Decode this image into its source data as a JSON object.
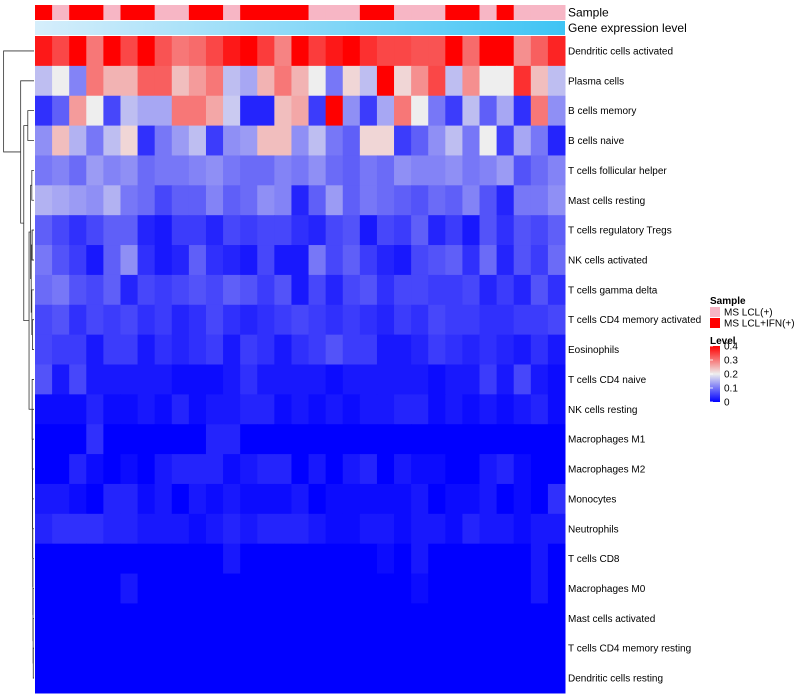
{
  "chart_data": {
    "type": "heatmap",
    "title": "",
    "annotation_labels": [
      "Sample",
      "Gene expression level"
    ],
    "rows": [
      "Dendritic cells activated",
      "Plasma cells",
      "B cells memory",
      "B cells naive",
      "T cells follicular helper",
      "Mast cells resting",
      "T cells regulatory  Tregs",
      "NK cells activated",
      "T cells gamma delta",
      "T cells CD4 memory activated",
      "Eosinophils",
      "T cells CD4 naive",
      "NK cells resting",
      "Macrophages M1",
      "Macrophages M2",
      "Monocytes",
      "Neutrophils",
      "T cells CD8",
      "Macrophages M0",
      "Mast cells activated",
      "T cells CD4 memory resting",
      "Dendritic cells resting"
    ],
    "sample_groups": [
      1,
      0,
      1,
      1,
      0,
      1,
      1,
      0,
      0,
      1,
      1,
      0,
      1,
      1,
      1,
      1,
      0,
      0,
      0,
      1,
      1,
      0,
      0,
      0,
      1,
      1,
      0,
      1,
      0,
      0,
      0
    ],
    "values": [
      [
        0.38,
        0.34,
        0.4,
        0.3,
        0.4,
        0.34,
        0.4,
        0.33,
        0.3,
        0.31,
        0.34,
        0.38,
        0.4,
        0.35,
        0.29,
        0.4,
        0.35,
        0.38,
        0.4,
        0.36,
        0.34,
        0.34,
        0.33,
        0.33,
        0.4,
        0.31,
        0.4,
        0.4,
        0.28,
        0.32,
        0.37
      ],
      [
        0.16,
        0.2,
        0.11,
        0.3,
        0.25,
        0.25,
        0.32,
        0.32,
        0.24,
        0.27,
        0.3,
        0.16,
        0.14,
        0.25,
        0.3,
        0.25,
        0.2,
        0.1,
        0.22,
        0.16,
        0.4,
        0.22,
        0.28,
        0.34,
        0.16,
        0.28,
        0.2,
        0.2,
        0.36,
        0.24,
        0.16
      ],
      [
        0.04,
        0.08,
        0.27,
        0.2,
        0.06,
        0.16,
        0.14,
        0.14,
        0.3,
        0.3,
        0.26,
        0.17,
        0.03,
        0.03,
        0.24,
        0.26,
        0.05,
        0.4,
        0.12,
        0.05,
        0.14,
        0.3,
        0.2,
        0.1,
        0.05,
        0.16,
        0.08,
        0.14,
        0.04,
        0.3,
        0.12
      ],
      [
        0.12,
        0.24,
        0.15,
        0.1,
        0.16,
        0.22,
        0.04,
        0.1,
        0.13,
        0.16,
        0.05,
        0.12,
        0.13,
        0.24,
        0.24,
        0.12,
        0.16,
        0.1,
        0.08,
        0.22,
        0.22,
        0.05,
        0.08,
        0.12,
        0.16,
        0.1,
        0.2,
        0.05,
        0.14,
        0.1,
        0.03
      ],
      [
        0.1,
        0.11,
        0.09,
        0.13,
        0.11,
        0.12,
        0.09,
        0.1,
        0.1,
        0.11,
        0.12,
        0.1,
        0.09,
        0.09,
        0.11,
        0.1,
        0.12,
        0.09,
        0.08,
        0.1,
        0.09,
        0.12,
        0.11,
        0.11,
        0.12,
        0.1,
        0.11,
        0.13,
        0.07,
        0.09,
        0.11
      ],
      [
        0.15,
        0.14,
        0.13,
        0.12,
        0.15,
        0.1,
        0.09,
        0.06,
        0.08,
        0.08,
        0.11,
        0.08,
        0.09,
        0.12,
        0.11,
        0.03,
        0.08,
        0.13,
        0.08,
        0.1,
        0.09,
        0.08,
        0.07,
        0.09,
        0.08,
        0.11,
        0.07,
        0.03,
        0.1,
        0.1,
        0.12
      ],
      [
        0.08,
        0.06,
        0.04,
        0.06,
        0.08,
        0.08,
        0.03,
        0.02,
        0.05,
        0.05,
        0.03,
        0.06,
        0.05,
        0.06,
        0.06,
        0.04,
        0.03,
        0.06,
        0.07,
        0.02,
        0.06,
        0.05,
        0.08,
        0.03,
        0.05,
        0.02,
        0.07,
        0.04,
        0.07,
        0.06,
        0.08
      ],
      [
        0.1,
        0.07,
        0.05,
        0.02,
        0.08,
        0.12,
        0.04,
        0.02,
        0.03,
        0.08,
        0.04,
        0.03,
        0.02,
        0.06,
        0.02,
        0.02,
        0.1,
        0.06,
        0.08,
        0.05,
        0.03,
        0.02,
        0.06,
        0.07,
        0.08,
        0.04,
        0.09,
        0.03,
        0.07,
        0.05,
        0.09
      ],
      [
        0.09,
        0.1,
        0.07,
        0.06,
        0.08,
        0.03,
        0.06,
        0.05,
        0.06,
        0.07,
        0.06,
        0.08,
        0.07,
        0.05,
        0.07,
        0.02,
        0.06,
        0.03,
        0.06,
        0.07,
        0.04,
        0.06,
        0.06,
        0.05,
        0.05,
        0.06,
        0.03,
        0.05,
        0.03,
        0.07,
        0.04
      ],
      [
        0.06,
        0.07,
        0.04,
        0.06,
        0.05,
        0.06,
        0.04,
        0.05,
        0.03,
        0.04,
        0.06,
        0.04,
        0.03,
        0.04,
        0.05,
        0.06,
        0.05,
        0.04,
        0.05,
        0.04,
        0.03,
        0.05,
        0.04,
        0.06,
        0.05,
        0.05,
        0.04,
        0.04,
        0.05,
        0.05,
        0.06
      ],
      [
        0.06,
        0.05,
        0.05,
        0.02,
        0.05,
        0.05,
        0.02,
        0.04,
        0.03,
        0.04,
        0.05,
        0.02,
        0.05,
        0.04,
        0.02,
        0.04,
        0.05,
        0.07,
        0.05,
        0.05,
        0.02,
        0.02,
        0.03,
        0.05,
        0.04,
        0.03,
        0.04,
        0.03,
        0.02,
        0.04,
        0.02
      ],
      [
        0.07,
        0.02,
        0.06,
        0.02,
        0.02,
        0.02,
        0.02,
        0.02,
        0.01,
        0.01,
        0.01,
        0.02,
        0.04,
        0.02,
        0.02,
        0.02,
        0.02,
        0.01,
        0.02,
        0.02,
        0.02,
        0.02,
        0.02,
        0.01,
        0.02,
        0.02,
        0.05,
        0.02,
        0.06,
        0.02,
        0.01
      ],
      [
        0.01,
        0.01,
        0.01,
        0.03,
        0.01,
        0.01,
        0.02,
        0.01,
        0.03,
        0.01,
        0.02,
        0.02,
        0.03,
        0.03,
        0.01,
        0.02,
        0.01,
        0.02,
        0.01,
        0.02,
        0.02,
        0.03,
        0.03,
        0.01,
        0.02,
        0.01,
        0.02,
        0.01,
        0.02,
        0.03,
        0.01
      ],
      [
        0.0,
        0.0,
        0.0,
        0.04,
        0.0,
        0.0,
        0.0,
        0.0,
        0.0,
        0.0,
        0.03,
        0.03,
        0.0,
        0.0,
        0.0,
        0.0,
        0.0,
        0.0,
        0.0,
        0.0,
        0.0,
        0.0,
        0.0,
        0.0,
        0.0,
        0.0,
        0.0,
        0.0,
        0.0,
        0.0,
        0.0
      ],
      [
        0.0,
        0.0,
        0.03,
        0.01,
        0.0,
        0.01,
        0.0,
        0.02,
        0.03,
        0.03,
        0.03,
        0.01,
        0.02,
        0.03,
        0.03,
        0.0,
        0.02,
        0.0,
        0.02,
        0.03,
        0.0,
        0.02,
        0.01,
        0.01,
        0.0,
        0.0,
        0.02,
        0.03,
        0.01,
        0.0,
        0.0
      ],
      [
        0.02,
        0.02,
        0.01,
        0.0,
        0.03,
        0.03,
        0.01,
        0.02,
        0.0,
        0.02,
        0.01,
        0.02,
        0.01,
        0.01,
        0.01,
        0.02,
        0.0,
        0.01,
        0.01,
        0.01,
        0.01,
        0.01,
        0.02,
        0.0,
        0.01,
        0.01,
        0.02,
        0.0,
        0.01,
        0.0,
        0.04
      ],
      [
        0.03,
        0.04,
        0.04,
        0.04,
        0.03,
        0.03,
        0.02,
        0.02,
        0.02,
        0.01,
        0.02,
        0.03,
        0.02,
        0.03,
        0.03,
        0.03,
        0.02,
        0.01,
        0.01,
        0.02,
        0.02,
        0.01,
        0.02,
        0.02,
        0.01,
        0.03,
        0.02,
        0.02,
        0.01,
        0.02,
        0.02
      ],
      [
        0.0,
        0.0,
        0.0,
        0.0,
        0.0,
        0.0,
        0.0,
        0.0,
        0.0,
        0.0,
        0.0,
        0.02,
        0.0,
        0.0,
        0.0,
        0.0,
        0.0,
        0.0,
        0.0,
        0.0,
        0.01,
        0.0,
        0.02,
        0.0,
        0.0,
        0.0,
        0.0,
        0.0,
        0.0,
        0.02,
        0.0
      ],
      [
        0.0,
        0.0,
        0.0,
        0.0,
        0.0,
        0.02,
        0.0,
        0.0,
        0.0,
        0.0,
        0.0,
        0.0,
        0.0,
        0.0,
        0.0,
        0.0,
        0.0,
        0.0,
        0.0,
        0.0,
        0.0,
        0.0,
        0.01,
        0.0,
        0.0,
        0.0,
        0.0,
        0.0,
        0.0,
        0.02,
        0.0
      ],
      [
        0.0,
        0.0,
        0.0,
        0.0,
        0.0,
        0.0,
        0.0,
        0.0,
        0.0,
        0.0,
        0.0,
        0.0,
        0.0,
        0.0,
        0.0,
        0.0,
        0.0,
        0.0,
        0.0,
        0.0,
        0.0,
        0.0,
        0.0,
        0.0,
        0.0,
        0.0,
        0.0,
        0.0,
        0.0,
        0.0,
        0.0
      ],
      [
        0.0,
        0.0,
        0.0,
        0.0,
        0.0,
        0.0,
        0.0,
        0.0,
        0.0,
        0.0,
        0.0,
        0.0,
        0.0,
        0.0,
        0.0,
        0.0,
        0.0,
        0.0,
        0.0,
        0.0,
        0.0,
        0.0,
        0.0,
        0.0,
        0.0,
        0.0,
        0.0,
        0.0,
        0.0,
        0.0,
        0.0
      ],
      [
        0.0,
        0.0,
        0.0,
        0.0,
        0.0,
        0.0,
        0.0,
        0.0,
        0.0,
        0.0,
        0.0,
        0.0,
        0.0,
        0.0,
        0.0,
        0.0,
        0.0,
        0.0,
        0.0,
        0.0,
        0.0,
        0.0,
        0.0,
        0.0,
        0.0,
        0.0,
        0.0,
        0.0,
        0.0,
        0.0,
        0.0
      ]
    ],
    "legend": {
      "sample": {
        "title": "Sample",
        "entries": [
          {
            "label": "MS LCL(+)",
            "color": "#f7b6c5"
          },
          {
            "label": "MS LCL+IFN(+)",
            "color": "#ff0000"
          }
        ]
      },
      "level": {
        "title": "Level",
        "min": 0,
        "max": 0.4,
        "ticks": [
          "0.4",
          "0.3",
          "0.2",
          "0.1",
          "0"
        ],
        "tick_values": [
          0.4,
          0.3,
          0.2,
          0.1,
          0
        ],
        "colors": [
          "#0000ff",
          "#eeeeee",
          "#ff0000"
        ],
        "placement": "right"
      }
    },
    "expression_bar_colors": [
      "#d6eefb",
      "#3fc4f4"
    ]
  }
}
